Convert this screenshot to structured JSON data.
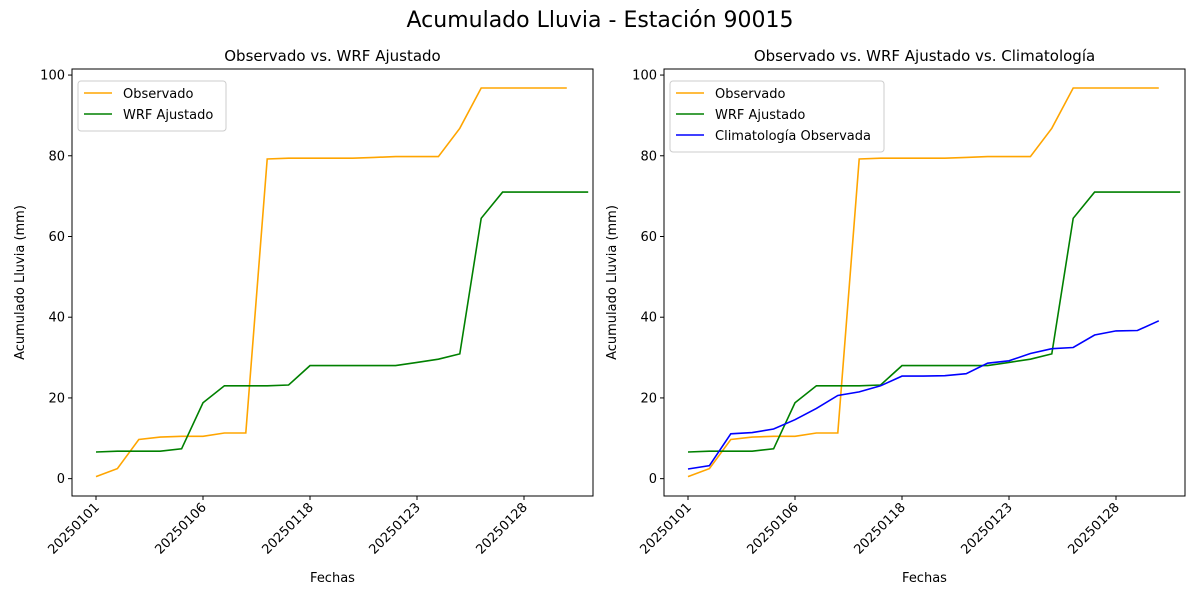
{
  "figure": {
    "suptitle": "Acumulado Lluvia - Estación 90015"
  },
  "chart_data": [
    {
      "type": "line",
      "title": "Observado vs. WRF Ajustado",
      "xlabel": "Fechas",
      "ylabel": "Acumulado Lluvia (mm)",
      "x_ticks": [
        "20250101",
        "20250106",
        "20250118",
        "20250123",
        "20250128"
      ],
      "y_ticks": [
        0,
        20,
        40,
        60,
        80,
        100
      ],
      "ylim": [
        -4.3,
        101.5
      ],
      "grid": false,
      "legend_position": "upper left",
      "series": [
        {
          "name": "Observado",
          "color": "#FFA500",
          "values": [
            0.5,
            2.5,
            9.7,
            10.3,
            10.5,
            10.5,
            11.3,
            11.3,
            79.2,
            79.4,
            79.4,
            79.4,
            79.4,
            79.6,
            79.8,
            79.8,
            79.8,
            86.8,
            96.8,
            96.8,
            96.8,
            96.8,
            96.8,
            null
          ]
        },
        {
          "name": "WRF Ajustado",
          "color": "#008000",
          "values": [
            6.6,
            6.8,
            6.8,
            6.8,
            7.4,
            18.8,
            23.0,
            23.0,
            23.0,
            23.2,
            28.0,
            28.0,
            28.0,
            28.0,
            28.0,
            28.8,
            29.6,
            30.9,
            64.5,
            71.0,
            71.0,
            71.0,
            71.0,
            71.0
          ]
        }
      ]
    },
    {
      "type": "line",
      "title": "Observado vs. WRF Ajustado vs. Climatología",
      "xlabel": "Fechas",
      "ylabel": "Acumulado Lluvia (mm)",
      "x_ticks": [
        "20250101",
        "20250106",
        "20250118",
        "20250123",
        "20250128"
      ],
      "y_ticks": [
        0,
        20,
        40,
        60,
        80,
        100
      ],
      "ylim": [
        -4.3,
        101.5
      ],
      "grid": false,
      "legend_position": "upper left",
      "series": [
        {
          "name": "Observado",
          "color": "#FFA500",
          "values": [
            0.5,
            2.5,
            9.7,
            10.3,
            10.5,
            10.5,
            11.3,
            11.3,
            79.2,
            79.4,
            79.4,
            79.4,
            79.4,
            79.6,
            79.8,
            79.8,
            79.8,
            86.8,
            96.8,
            96.8,
            96.8,
            96.8,
            96.8,
            null
          ]
        },
        {
          "name": "WRF Ajustado",
          "color": "#008000",
          "values": [
            6.6,
            6.8,
            6.8,
            6.8,
            7.4,
            18.8,
            23.0,
            23.0,
            23.0,
            23.2,
            28.0,
            28.0,
            28.0,
            28.0,
            28.0,
            28.8,
            29.6,
            30.9,
            64.5,
            71.0,
            71.0,
            71.0,
            71.0,
            71.0
          ]
        },
        {
          "name": "Climatología Observada",
          "color": "#0000FF",
          "values": [
            2.4,
            3.2,
            11.1,
            11.4,
            12.3,
            14.6,
            17.4,
            20.6,
            21.5,
            23.0,
            25.4,
            25.4,
            25.5,
            26.0,
            28.6,
            29.2,
            31.0,
            32.2,
            32.5,
            35.6,
            36.6,
            36.7,
            39.1
          ]
        }
      ]
    }
  ]
}
